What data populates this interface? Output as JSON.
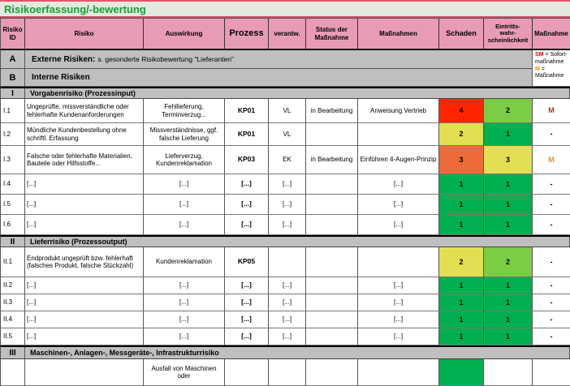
{
  "title": "Risikoerfassung/-bewertung",
  "palette": {
    "header_pink": "#e89cb4",
    "section_gray": "#bfbfbf",
    "title_bg": "#e3e9dc",
    "title_green": "#13a038",
    "risk_red": "#fe2500",
    "risk_orange": "#ee6a3a",
    "risk_yellow": "#e3df53",
    "risk_green": "#00b050",
    "risk_green_light": "#7ccd43"
  },
  "columns": [
    "Risiko\nID",
    "Risiko",
    "Auswirkung",
    "Prozess",
    "verantw.",
    "Status der\nMaßnahme",
    "Maßnahmen",
    "Schaden",
    "Eintritts-\nwahr-\nscheinlichkeit",
    "Maßnahme"
  ],
  "legend": {
    "items": [
      {
        "key": "SM",
        "text": " = Sofort-maßnahme",
        "color": "#ff0000"
      },
      {
        "key": "M",
        "text": " = Maßnahme",
        "color": "#f08c00"
      }
    ]
  },
  "sections": {
    "a": {
      "id": "A",
      "label": "Externe Risiken:",
      "note": "s. gesonderte Risikobewertung \"Lieferanten\""
    },
    "b": {
      "id": "B",
      "label": "Interne Risiken"
    },
    "i": {
      "id": "I",
      "label": "Vorgabenrisiko (Prozessinput)"
    },
    "ii": {
      "id": "II",
      "label": "Lieferrisiko (Prozessoutput)"
    },
    "iii": {
      "id": "III",
      "label": "Maschinen-, Anlagen-, Messgeräte-, Infrastrukturrisiko"
    }
  },
  "rows": [
    {
      "id": "I.1",
      "risiko": "Ungeprüfte, missverständliche oder fehlerhafte Kundenanforderungen",
      "auswirkung": "Fehllieferung, Terminverzug...",
      "prozess": "KP01",
      "verantw": "VL",
      "status": "in Bearbeitung",
      "massnahmen": "Anweisung Vertrieb",
      "schaden": "4",
      "schaden_bg": "#fe2500",
      "eintritt": "2",
      "eintritt_bg": "#7ccd43",
      "massnahme": "M",
      "massnahme_color": "#c43000"
    },
    {
      "id": "I.2",
      "risiko": "Mündliche Kundenbestellung ohne schriftl. Erfassung",
      "auswirkung": "Missverständnisse, ggf. falsche Lieferung",
      "prozess": "KP01",
      "verantw": "VL",
      "status": "",
      "massnahmen": "",
      "schaden": "2",
      "schaden_bg": "#e3df53",
      "eintritt": "1",
      "eintritt_bg": "#00b050",
      "massnahme": "-",
      "massnahme_color": "#000000"
    },
    {
      "id": "I.3",
      "risiko": "Falsche oder fehlerhafte Materialien, Bauteile oder Hilfsstoffe...",
      "auswirkung": "Lieferverzug, Kundenreklamation",
      "prozess": "KP03",
      "verantw": "EK",
      "status": "in Bearbeitung",
      "massnahmen": "Einführen 4-Augen-Prinzip",
      "schaden": "3",
      "schaden_bg": "#ee6a3a",
      "eintritt": "3",
      "eintritt_bg": "#e3df53",
      "massnahme": "M",
      "massnahme_color": "#f08c00"
    },
    {
      "id": "I.4",
      "risiko": "[...]",
      "auswirkung": "[...]",
      "prozess": "[...]",
      "verantw": "[...]",
      "status": "",
      "massnahmen": "[...]",
      "schaden": "1",
      "schaden_bg": "#00b050",
      "eintritt": "1",
      "eintritt_bg": "#00b050",
      "massnahme": "-",
      "massnahme_color": "#000000"
    },
    {
      "id": "I.5",
      "risiko": "[...]",
      "auswirkung": "[...]",
      "prozess": "[...]",
      "verantw": "[...]",
      "status": "",
      "massnahmen": "[...]",
      "schaden": "1",
      "schaden_bg": "#00b050",
      "eintritt": "1",
      "eintritt_bg": "#00b050",
      "massnahme": "-",
      "massnahme_color": "#000000"
    },
    {
      "id": "I.6",
      "risiko": "[...]",
      "auswirkung": "[...]",
      "prozess": "[...]",
      "verantw": "[...]",
      "status": "",
      "massnahmen": "[...]",
      "schaden": "1",
      "schaden_bg": "#00b050",
      "eintritt": "1",
      "eintritt_bg": "#00b050",
      "massnahme": "-",
      "massnahme_color": "#000000"
    },
    {
      "id": "II.1",
      "risiko": "Endprodukt ungeprüft bzw. fehlerhaft (falsches Produkt, falsche Stückzahl)",
      "auswirkung": "Kundenreklamation",
      "prozess": "KP05",
      "verantw": "",
      "status": "",
      "massnahmen": "",
      "schaden": "2",
      "schaden_bg": "#e3df53",
      "eintritt": "2",
      "eintritt_bg": "#7ccd43",
      "massnahme": "-",
      "massnahme_color": "#000000"
    },
    {
      "id": "II.2",
      "risiko": "[...]",
      "auswirkung": "[...]",
      "prozess": "[...]",
      "verantw": "[...]",
      "status": "",
      "massnahmen": "[...]",
      "schaden": "1",
      "schaden_bg": "#00b050",
      "eintritt": "1",
      "eintritt_bg": "#00b050",
      "massnahme": "-",
      "massnahme_color": "#000000"
    },
    {
      "id": "II.3",
      "risiko": "[...]",
      "auswirkung": "[...]",
      "prozess": "[...]",
      "verantw": "[...]",
      "status": "",
      "massnahmen": "[...]",
      "schaden": "1",
      "schaden_bg": "#00b050",
      "eintritt": "1",
      "eintritt_bg": "#00b050",
      "massnahme": "-",
      "massnahme_color": "#000000"
    },
    {
      "id": "II.4",
      "risiko": "[...]",
      "auswirkung": "[...]",
      "prozess": "[...]",
      "verantw": "[...]",
      "status": "",
      "massnahmen": "[...]",
      "schaden": "1",
      "schaden_bg": "#00b050",
      "eintritt": "1",
      "eintritt_bg": "#00b050",
      "massnahme": "-",
      "massnahme_color": "#000000"
    },
    {
      "id": "II.5",
      "risiko": "[...]",
      "auswirkung": "[...]",
      "prozess": "[...]",
      "verantw": "[...]",
      "status": "",
      "massnahmen": "[...]",
      "schaden": "1",
      "schaden_bg": "#00b050",
      "eintritt": "1",
      "eintritt_bg": "#00b050",
      "massnahme": "-",
      "massnahme_color": "#000000"
    },
    {
      "id": "",
      "risiko": "",
      "auswirkung": "Ausfall von Maschinen oder",
      "prozess": "",
      "verantw": "",
      "status": "",
      "massnahmen": "",
      "schaden": "",
      "schaden_bg": "#00b050",
      "eintritt": "",
      "eintritt_bg": "",
      "massnahme": "",
      "massnahme_color": "#000000"
    }
  ]
}
